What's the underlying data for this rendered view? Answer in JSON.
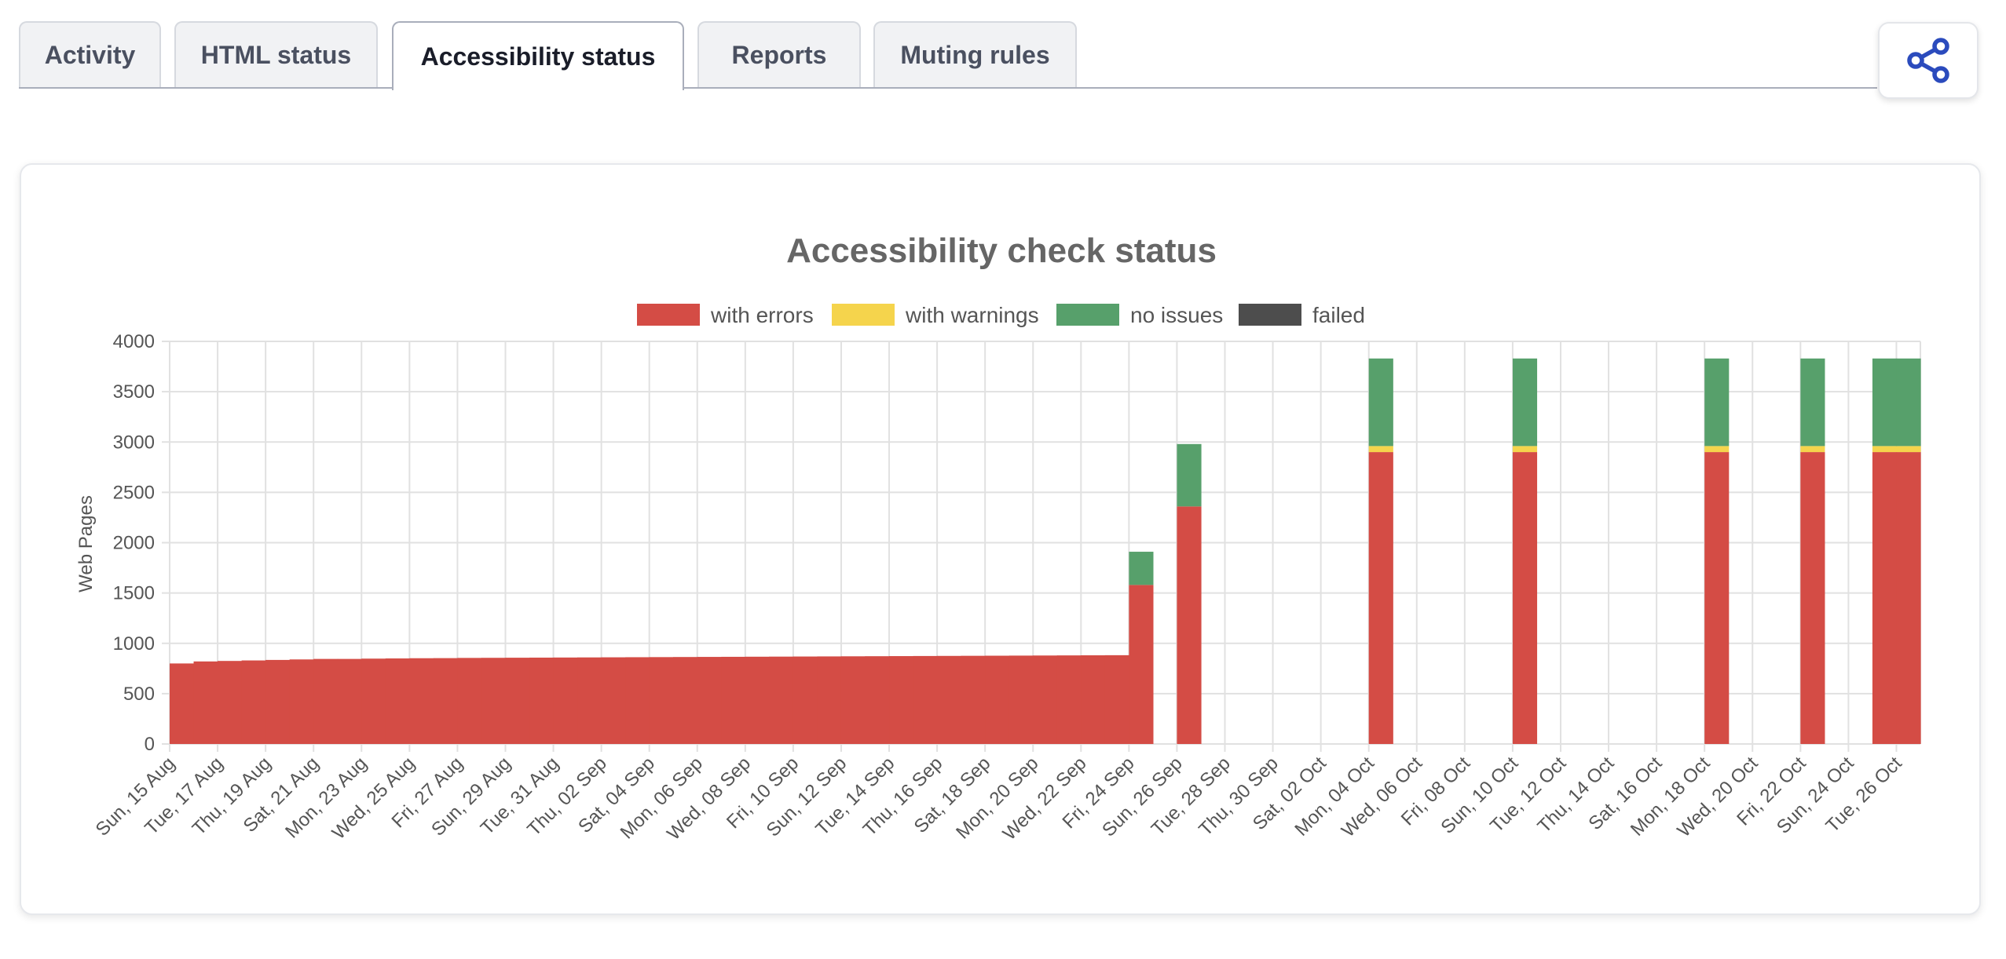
{
  "tabs": [
    {
      "label": "Activity",
      "active": false
    },
    {
      "label": "HTML status",
      "active": false
    },
    {
      "label": "Accessibility status",
      "active": true
    },
    {
      "label": "Reports",
      "active": false
    },
    {
      "label": "Muting rules",
      "active": false
    }
  ],
  "share_button": {
    "icon": "share-icon",
    "color": "#2b4bbd"
  },
  "chart_data": {
    "type": "bar",
    "stacked": true,
    "title": "Accessibility check status",
    "ylabel": "Web Pages",
    "xlabel": "",
    "ylim": [
      0,
      4000
    ],
    "yticks": [
      0,
      500,
      1000,
      1500,
      2000,
      2500,
      3000,
      3500,
      4000
    ],
    "grid": true,
    "legend_position": "top",
    "x_start": "2021-08-15",
    "x_end": "2021-10-26",
    "xtick_labels": [
      "Sun, 15 Aug",
      "Tue, 17 Aug",
      "Thu, 19 Aug",
      "Sat, 21 Aug",
      "Mon, 23 Aug",
      "Wed, 25 Aug",
      "Fri, 27 Aug",
      "Sun, 29 Aug",
      "Tue, 31 Aug",
      "Thu, 02 Sep",
      "Sat, 04 Sep",
      "Mon, 06 Sep",
      "Wed, 08 Sep",
      "Fri, 10 Sep",
      "Sun, 12 Sep",
      "Tue, 14 Sep",
      "Thu, 16 Sep",
      "Sat, 18 Sep",
      "Mon, 20 Sep",
      "Wed, 22 Sep",
      "Fri, 24 Sep",
      "Sun, 26 Sep",
      "Tue, 28 Sep",
      "Thu, 30 Sep",
      "Sat, 02 Oct",
      "Mon, 04 Oct",
      "Wed, 06 Oct",
      "Fri, 08 Oct",
      "Sun, 10 Oct",
      "Tue, 12 Oct",
      "Thu, 14 Oct",
      "Sat, 16 Oct",
      "Mon, 18 Oct",
      "Wed, 20 Oct",
      "Fri, 22 Oct",
      "Sun, 24 Oct",
      "Tue, 26 Oct"
    ],
    "series": [
      {
        "name": "with errors",
        "color": "#d44c45"
      },
      {
        "name": "with warnings",
        "color": "#f5d44c"
      },
      {
        "name": "no issues",
        "color": "#57a06b"
      },
      {
        "name": "failed",
        "color": "#4d4d4d"
      }
    ],
    "points": [
      {
        "date": "Sun, 15 Aug",
        "values": [
          800,
          0,
          0,
          0
        ]
      },
      {
        "date": "Mon, 16 Aug",
        "values": [
          820,
          0,
          0,
          0
        ]
      },
      {
        "date": "Tue, 17 Aug",
        "values": [
          825,
          0,
          0,
          0
        ]
      },
      {
        "date": "Wed, 18 Aug",
        "values": [
          830,
          0,
          0,
          0
        ]
      },
      {
        "date": "Thu, 19 Aug",
        "values": [
          835,
          0,
          0,
          0
        ]
      },
      {
        "date": "Fri, 20 Aug",
        "values": [
          840,
          0,
          0,
          0
        ]
      },
      {
        "date": "Sat, 21 Aug",
        "values": [
          845,
          0,
          0,
          0
        ]
      },
      {
        "date": "Sun, 22 Aug",
        "values": [
          845,
          0,
          0,
          0
        ]
      },
      {
        "date": "Mon, 23 Aug",
        "values": [
          848,
          0,
          0,
          0
        ]
      },
      {
        "date": "Tue, 24 Aug",
        "values": [
          850,
          0,
          0,
          0
        ]
      },
      {
        "date": "Wed, 25 Aug",
        "values": [
          852,
          0,
          0,
          0
        ]
      },
      {
        "date": "Thu, 26 Aug",
        "values": [
          853,
          0,
          0,
          0
        ]
      },
      {
        "date": "Fri, 27 Aug",
        "values": [
          855,
          0,
          0,
          0
        ]
      },
      {
        "date": "Sat, 28 Aug",
        "values": [
          856,
          0,
          0,
          0
        ]
      },
      {
        "date": "Sun, 29 Aug",
        "values": [
          857,
          0,
          0,
          0
        ]
      },
      {
        "date": "Mon, 30 Aug",
        "values": [
          858,
          0,
          0,
          0
        ]
      },
      {
        "date": "Tue, 31 Aug",
        "values": [
          859,
          0,
          0,
          0
        ]
      },
      {
        "date": "Wed, 01 Sep",
        "values": [
          860,
          0,
          0,
          0
        ]
      },
      {
        "date": "Thu, 02 Sep",
        "values": [
          861,
          0,
          0,
          0
        ]
      },
      {
        "date": "Fri, 03 Sep",
        "values": [
          862,
          0,
          0,
          0
        ]
      },
      {
        "date": "Sat, 04 Sep",
        "values": [
          863,
          0,
          0,
          0
        ]
      },
      {
        "date": "Sun, 05 Sep",
        "values": [
          864,
          0,
          0,
          0
        ]
      },
      {
        "date": "Mon, 06 Sep",
        "values": [
          865,
          0,
          0,
          0
        ]
      },
      {
        "date": "Tue, 07 Sep",
        "values": [
          866,
          0,
          0,
          0
        ]
      },
      {
        "date": "Wed, 08 Sep",
        "values": [
          867,
          0,
          0,
          0
        ]
      },
      {
        "date": "Thu, 09 Sep",
        "values": [
          868,
          0,
          0,
          0
        ]
      },
      {
        "date": "Fri, 10 Sep",
        "values": [
          869,
          0,
          0,
          0
        ]
      },
      {
        "date": "Sat, 11 Sep",
        "values": [
          870,
          0,
          0,
          0
        ]
      },
      {
        "date": "Sun, 12 Sep",
        "values": [
          871,
          0,
          0,
          0
        ]
      },
      {
        "date": "Mon, 13 Sep",
        "values": [
          872,
          0,
          0,
          0
        ]
      },
      {
        "date": "Tue, 14 Sep",
        "values": [
          873,
          0,
          0,
          0
        ]
      },
      {
        "date": "Wed, 15 Sep",
        "values": [
          874,
          0,
          0,
          0
        ]
      },
      {
        "date": "Thu, 16 Sep",
        "values": [
          875,
          0,
          0,
          0
        ]
      },
      {
        "date": "Fri, 17 Sep",
        "values": [
          876,
          0,
          0,
          0
        ]
      },
      {
        "date": "Sat, 18 Sep",
        "values": [
          877,
          0,
          0,
          0
        ]
      },
      {
        "date": "Sun, 19 Sep",
        "values": [
          878,
          0,
          0,
          0
        ]
      },
      {
        "date": "Mon, 20 Sep",
        "values": [
          879,
          0,
          0,
          0
        ]
      },
      {
        "date": "Tue, 21 Sep",
        "values": [
          880,
          0,
          0,
          0
        ]
      },
      {
        "date": "Wed, 22 Sep",
        "values": [
          881,
          0,
          0,
          0
        ]
      },
      {
        "date": "Thu, 23 Sep",
        "values": [
          882,
          0,
          0,
          0
        ]
      },
      {
        "date": "Fri, 24 Sep",
        "values": [
          1580,
          0,
          330,
          0
        ]
      },
      {
        "date": "Sun, 26 Sep",
        "values": [
          2360,
          0,
          620,
          0
        ]
      },
      {
        "date": "Mon, 04 Oct",
        "values": [
          2900,
          60,
          870,
          0
        ]
      },
      {
        "date": "Sun, 10 Oct",
        "values": [
          2900,
          60,
          870,
          0
        ]
      },
      {
        "date": "Mon, 18 Oct",
        "values": [
          2900,
          60,
          870,
          0
        ]
      },
      {
        "date": "Fri, 22 Oct",
        "values": [
          2900,
          60,
          870,
          0
        ]
      },
      {
        "date": "Mon, 25 Oct",
        "values": [
          2900,
          60,
          870,
          0
        ]
      },
      {
        "date": "Tue, 26 Oct",
        "values": [
          2900,
          60,
          870,
          0
        ]
      }
    ]
  }
}
